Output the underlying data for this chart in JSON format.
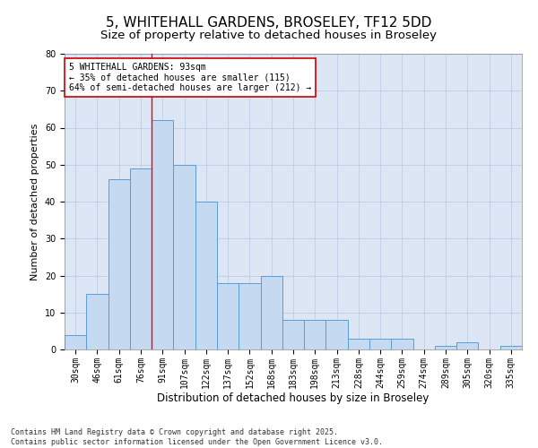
{
  "title": "5, WHITEHALL GARDENS, BROSELEY, TF12 5DD",
  "subtitle": "Size of property relative to detached houses in Broseley",
  "xlabel": "Distribution of detached houses by size in Broseley",
  "ylabel": "Number of detached properties",
  "bar_color": "#c5d9f0",
  "bar_edge_color": "#5b9bd5",
  "background_color": "#dce6f5",
  "bins": [
    "30sqm",
    "46sqm",
    "61sqm",
    "76sqm",
    "91sqm",
    "107sqm",
    "122sqm",
    "137sqm",
    "152sqm",
    "168sqm",
    "183sqm",
    "198sqm",
    "213sqm",
    "228sqm",
    "244sqm",
    "259sqm",
    "274sqm",
    "289sqm",
    "305sqm",
    "320sqm",
    "335sqm"
  ],
  "values": [
    4,
    15,
    46,
    49,
    62,
    50,
    40,
    18,
    18,
    20,
    8,
    8,
    8,
    3,
    3,
    3,
    0,
    1,
    2,
    0,
    1
  ],
  "ylim": [
    0,
    80
  ],
  "yticks": [
    0,
    10,
    20,
    30,
    40,
    50,
    60,
    70,
    80
  ],
  "red_line_x": 3.5,
  "annotation_text": "5 WHITEHALL GARDENS: 93sqm\n← 35% of detached houses are smaller (115)\n64% of semi-detached houses are larger (212) →",
  "annotation_box_color": "#ffffff",
  "annotation_border_color": "#cc0000",
  "footer_text": "Contains HM Land Registry data © Crown copyright and database right 2025.\nContains public sector information licensed under the Open Government Licence v3.0.",
  "title_fontsize": 11,
  "subtitle_fontsize": 9.5,
  "xlabel_fontsize": 8.5,
  "ylabel_fontsize": 8,
  "tick_fontsize": 7,
  "annotation_fontsize": 7,
  "footer_fontsize": 6
}
